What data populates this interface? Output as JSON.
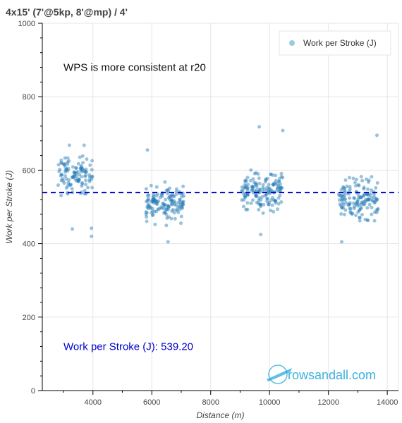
{
  "chart_data": {
    "type": "scatter",
    "title": "4x15' (7'@5kp, 8'@mp) / 4'",
    "xlabel": "Distance (m)",
    "ylabel": "Work per Stroke (J)",
    "xlim": [
      2280,
      14380
    ],
    "ylim": [
      0,
      1000
    ],
    "xticks": [
      "4000",
      "6000",
      "8000",
      "10000",
      "12000",
      "14000"
    ],
    "yticks": [
      "0",
      "200",
      "400",
      "600",
      "800",
      "1000"
    ],
    "grid": true,
    "legend_position": "top-right",
    "series": [
      {
        "name": "Work per Stroke (J)",
        "color": "#1f77b4",
        "clusters": [
          {
            "x_range": [
              2800,
              4000
            ],
            "y_center": 585,
            "y_spread": 45,
            "count": 110
          },
          {
            "x_range": [
              5800,
              7100
            ],
            "y_center": 510,
            "y_spread": 45,
            "count": 140
          },
          {
            "x_range": [
              9000,
              10450
            ],
            "y_center": 545,
            "y_spread": 45,
            "count": 150
          },
          {
            "x_range": [
              12350,
              13700
            ],
            "y_center": 520,
            "y_spread": 50,
            "count": 140
          }
        ],
        "notable_points": [
          {
            "x": 3700,
            "y": 668
          },
          {
            "x": 3200,
            "y": 668
          },
          {
            "x": 3300,
            "y": 440
          },
          {
            "x": 3950,
            "y": 442
          },
          {
            "x": 3950,
            "y": 420
          },
          {
            "x": 5850,
            "y": 655
          },
          {
            "x": 6550,
            "y": 405
          },
          {
            "x": 9650,
            "y": 718
          },
          {
            "x": 10450,
            "y": 708
          },
          {
            "x": 9700,
            "y": 425
          },
          {
            "x": 12450,
            "y": 405
          },
          {
            "x": 13650,
            "y": 695
          }
        ]
      }
    ],
    "mean_line": {
      "value": 539.2,
      "color": "#0000cc",
      "style": "dashed"
    },
    "annotations": [
      {
        "text": "WPS is more consistent at r20",
        "x": 3000,
        "y": 880
      },
      {
        "text": "Work per Stroke (J): 539.20",
        "x": 3000,
        "y": 120,
        "color": "#0000cc"
      }
    ]
  },
  "legend": {
    "label": "Work per Stroke (J)",
    "color": "#9ecae1"
  },
  "watermark": {
    "text": "rowsandall.com"
  }
}
